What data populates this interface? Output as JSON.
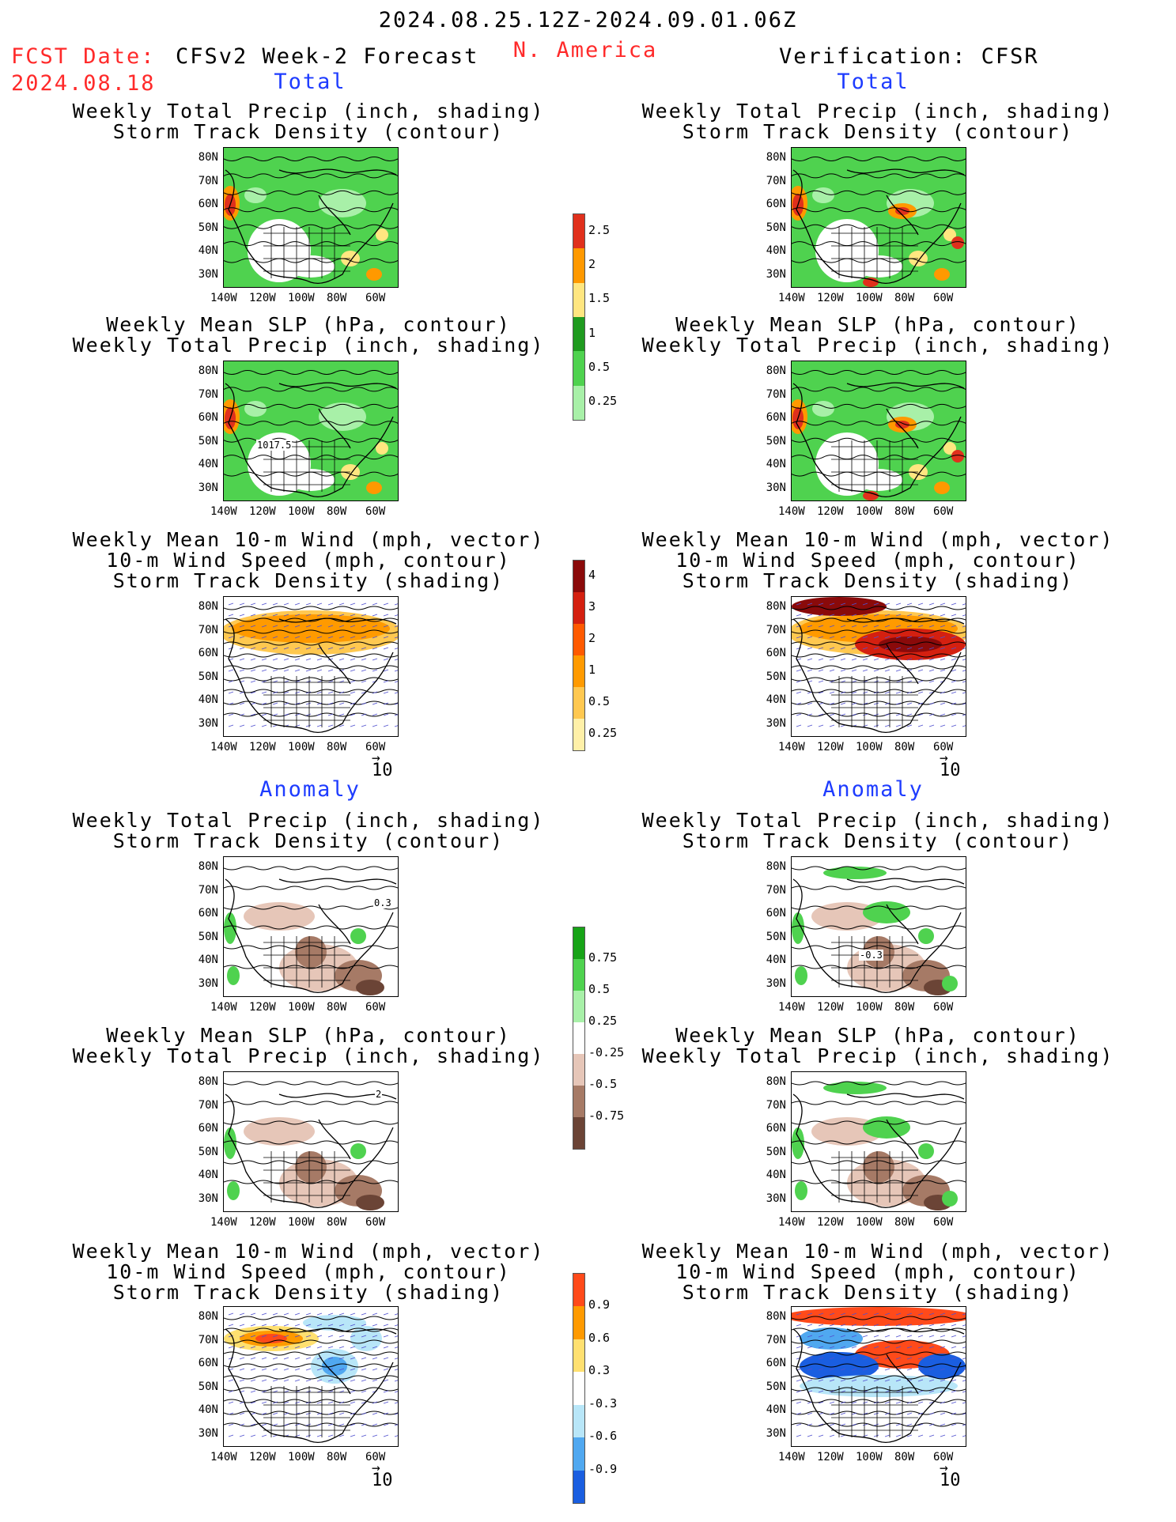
{
  "header": {
    "date_range": "2024.08.25.12Z-2024.09.01.06Z",
    "region": "N. America",
    "fcst_label": "FCST Date:",
    "fcst_date": "2024.08.18",
    "left_title": "CFSv2 Week-2 Forecast",
    "right_title": "Verification: CFSR"
  },
  "section_labels": {
    "total": "Total",
    "anomaly": "Anomaly"
  },
  "panel_titles": {
    "precip_track": "Weekly Total Precip (inch, shading)\nStorm Track Density (contour)",
    "slp_precip": "Weekly Mean SLP (hPa, contour)\nWeekly Total Precip (inch, shading)",
    "wind_track": "Weekly Mean 10-m Wind (mph, vector)\n10-m Wind Speed (mph, contour)\nStorm Track Density (shading)"
  },
  "axes": {
    "lat_labels": [
      "80N",
      "70N",
      "60N",
      "50N",
      "40N",
      "30N"
    ],
    "lon_labels": [
      "140W",
      "120W",
      "100W",
      "80W",
      "60W"
    ]
  },
  "vector_reference": "10",
  "contour_labels": {
    "slp_fcst": "1017.5",
    "anom_track_fcst": "0.3",
    "anom_slp_fcst": "2",
    "anom_track_obs": "-0.3"
  },
  "colorbars": [
    {
      "name": "total-precip",
      "labels": [
        "2.5",
        "2",
        "1.5",
        "1",
        "0.5",
        "0.25"
      ],
      "colors": [
        "#e0301c",
        "#ff9900",
        "#ffe680",
        "#1f9a1f",
        "#4fd24f",
        "#a8f0a8"
      ]
    },
    {
      "name": "total-track",
      "labels": [
        "4",
        "3",
        "2",
        "1",
        "0.5",
        "0.25"
      ],
      "colors": [
        "#8a0a0a",
        "#d42010",
        "#ff5a00",
        "#ff9a00",
        "#ffc850",
        "#fff0a8"
      ]
    },
    {
      "name": "anom-precip",
      "labels": [
        "0.75",
        "0.5",
        "0.25",
        "-0.25",
        "-0.5",
        "-0.75"
      ],
      "colors": [
        "#17a317",
        "#4fd24f",
        "#a8f0a8",
        "#ffffff",
        "#e6c6b8",
        "#a67a66",
        "#6b4436"
      ]
    },
    {
      "name": "anom-track",
      "labels": [
        "0.9",
        "0.6",
        "0.3",
        "-0.3",
        "-0.6",
        "-0.9"
      ],
      "colors": [
        "#ff4a1a",
        "#ff9a00",
        "#ffe070",
        "#ffffff",
        "#b8e6f8",
        "#50a8f0",
        "#1a5ee0"
      ]
    }
  ],
  "colors": {
    "title_red": "#ff2a2a",
    "label_blue": "#1e3cff"
  }
}
